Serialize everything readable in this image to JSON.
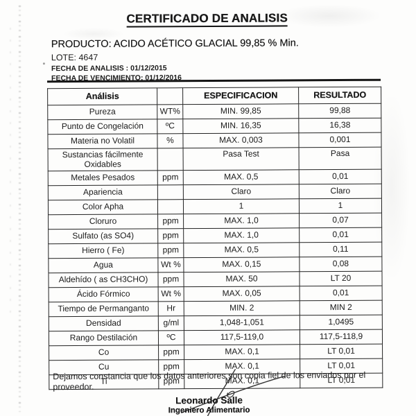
{
  "header": {
    "title": "CERTIFICADO DE ANALISIS",
    "product_line": "PRODUCTO: ACIDO ACÉTICO GLACIAL 99,85 % Min.",
    "lot_line": "LOTE: 4647",
    "analysis_date_line": "FECHA DE ANALISIS :  01/12/2015",
    "expiry_date_line": "FECHA DE VENCIMIENTO: 01/12/2016"
  },
  "table": {
    "headers": {
      "analisis": "Análisis",
      "unidad": "",
      "especificacion": "ESPECIFICACION",
      "resultado": "RESULTADO"
    },
    "rows": [
      {
        "analisis": "Pureza",
        "unidad": "WT%",
        "especificacion": "MIN. 99,85",
        "resultado": "99,88"
      },
      {
        "analisis": "Punto de Congelación",
        "unidad": "ºC",
        "especificacion": "MIN. 16,35",
        "resultado": "16,38"
      },
      {
        "analisis": "Materia no Volatil",
        "unidad": "%",
        "especificacion": "MAX. 0,003",
        "resultado": "0,001"
      },
      {
        "analisis": "Sustancias fácilmente Oxidables",
        "unidad": "",
        "especificacion": "Pasa Test",
        "resultado": "Pasa"
      },
      {
        "analisis": "Metales Pesados",
        "unidad": "ppm",
        "especificacion": "MAX. 0,5",
        "resultado": "0,01"
      },
      {
        "analisis": "Apariencia",
        "unidad": "",
        "especificacion": "Claro",
        "resultado": "Claro"
      },
      {
        "analisis": "Color Apha",
        "unidad": "",
        "especificacion": "1",
        "resultado": "1"
      },
      {
        "analisis": "Cloruro",
        "unidad": "ppm",
        "especificacion": "MAX. 1,0",
        "resultado": "0,07"
      },
      {
        "analisis": "Sulfato (as SO4)",
        "unidad": "ppm",
        "especificacion": "MAX. 1,0",
        "resultado": "0,01"
      },
      {
        "analisis": "Hierro ( Fe)",
        "unidad": "ppm",
        "especificacion": "MAX. 0,5",
        "resultado": "0,11"
      },
      {
        "analisis": "Agua",
        "unidad": "Wt %",
        "especificacion": "MAX. 0,15",
        "resultado": "0,08"
      },
      {
        "analisis": "Aldehído ( as CH3CHO)",
        "unidad": "ppm",
        "especificacion": "MAX. 50",
        "resultado": "LT 20"
      },
      {
        "analisis": "Ácido Fórmico",
        "unidad": "Wt %",
        "especificacion": "MAX. 0,05",
        "resultado": "0,01"
      },
      {
        "analisis": "Tiempo de Permanganto",
        "unidad": "Hr",
        "especificacion": "MIN. 2",
        "resultado": "MIN 2"
      },
      {
        "analisis": "Densidad",
        "unidad": "g/ml",
        "especificacion": "1,048-1,051",
        "resultado": "1,0495"
      },
      {
        "analisis": "Rango Destilación",
        "unidad": "ºC",
        "especificacion": "117,5-119,0",
        "resultado": "117,5-118,9"
      },
      {
        "analisis": "Co",
        "unidad": "ppm",
        "especificacion": "MAX. 0,1",
        "resultado": "LT 0,01"
      },
      {
        "analisis": "Cu",
        "unidad": "ppm",
        "especificacion": "MAX. 0,1",
        "resultado": "LT 0,01"
      },
      {
        "analisis": "Ti",
        "unidad": "ppm",
        "especificacion": "MAX. 0,1",
        "resultado": "LT 0,01"
      }
    ]
  },
  "footer": {
    "note": "Dejamos constancia que los datos anteriores son copia fiel de los enviados por el proveedor.",
    "signer_name": "Leonardo Salle",
    "signer_title": "Ingeniero Alimentario"
  }
}
